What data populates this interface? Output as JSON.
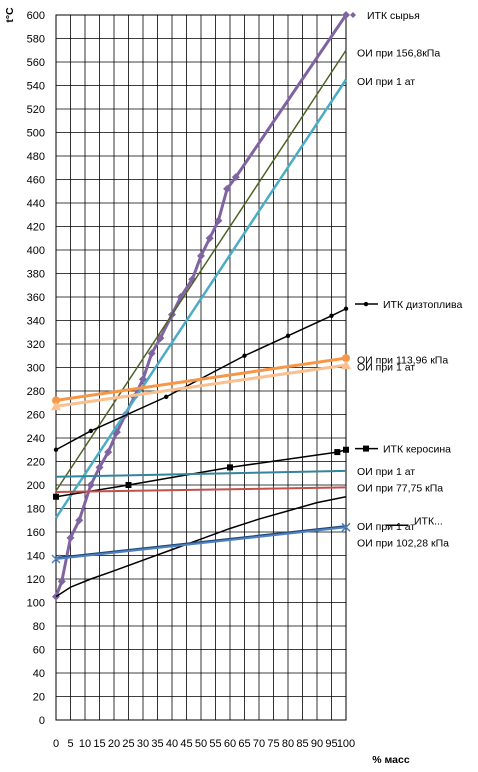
{
  "chart_data": {
    "type": "line",
    "ylabel": "t°C",
    "xlabel": "% масс",
    "xlim": [
      0,
      100
    ],
    "ylim": [
      0,
      600
    ],
    "x_ticks": [
      0,
      5,
      10,
      15,
      20,
      25,
      30,
      35,
      40,
      45,
      50,
      55,
      60,
      65,
      70,
      75,
      80,
      85,
      90,
      95,
      100
    ],
    "y_ticks": [
      0,
      20,
      40,
      60,
      80,
      100,
      120,
      140,
      160,
      180,
      200,
      220,
      240,
      260,
      280,
      300,
      320,
      340,
      360,
      380,
      400,
      420,
      440,
      460,
      480,
      500,
      520,
      540,
      560,
      580,
      600
    ],
    "grid": true,
    "series": [
      {
        "name": "ИТК сырья",
        "color": "#8064a2",
        "marker": "diamond",
        "width": 3,
        "x": [
          0,
          2,
          5,
          8,
          12,
          15,
          18,
          21,
          24,
          27,
          30,
          33,
          36,
          40,
          43,
          47,
          50,
          53,
          56,
          59,
          62,
          100
        ],
        "y": [
          105,
          118,
          155,
          170,
          200,
          215,
          228,
          245,
          260,
          275,
          290,
          312,
          325,
          345,
          360,
          375,
          395,
          410,
          425,
          452,
          462,
          600
        ]
      },
      {
        "name": "ОИ при 156,8кПа",
        "color": "#4f6228",
        "marker": "none",
        "width": 1.5,
        "x": [
          0,
          100
        ],
        "y": [
          195,
          570
        ]
      },
      {
        "name": "ОИ при 1 ат",
        "color": "#4bacc6",
        "marker": "none",
        "width": 2.5,
        "x": [
          0,
          100
        ],
        "y": [
          172,
          545
        ]
      },
      {
        "name": "ИТК дизтоплива",
        "color": "#000000",
        "marker": "dot",
        "width": 1.5,
        "x": [
          0,
          12,
          38,
          65,
          80,
          95,
          100
        ],
        "y": [
          230,
          246,
          275,
          310,
          327,
          344,
          350
        ]
      },
      {
        "name": "ОИ при 113,96 кПа",
        "color": "#f79646",
        "marker": "circle",
        "width": 3,
        "x": [
          0,
          100
        ],
        "y": [
          272,
          308
        ]
      },
      {
        "name": "ОИ при 1 ат",
        "color": "#fac090",
        "marker": "triangle",
        "width": 3,
        "x": [
          0,
          100
        ],
        "y": [
          267,
          302
        ]
      },
      {
        "name": "ИТК керосина",
        "color": "#000000",
        "marker": "square",
        "width": 1.5,
        "x": [
          0,
          25,
          60,
          97,
          100
        ],
        "y": [
          190,
          200,
          215,
          228,
          230
        ]
      },
      {
        "name": "ОИ при 1 ат",
        "color": "#31859c",
        "marker": "none",
        "width": 2,
        "x": [
          0,
          100
        ],
        "y": [
          207,
          212
        ]
      },
      {
        "name": "ОИ при 77,75 кПа",
        "color": "#c0504d",
        "marker": "none",
        "width": 2,
        "x": [
          0,
          100
        ],
        "y": [
          194,
          198
        ]
      },
      {
        "name": "ИТК...",
        "color": "#000000",
        "marker": "none",
        "width": 1.5,
        "x": [
          0,
          5,
          12,
          20,
          30,
          40,
          50,
          60,
          70,
          80,
          90,
          100
        ],
        "y": [
          105,
          113,
          120,
          127,
          136,
          145,
          154,
          163,
          171,
          178,
          185,
          190
        ]
      },
      {
        "name": "ОИ при 1 ат",
        "color": "#1f497d",
        "marker": "none",
        "width": 2,
        "x": [
          0,
          100
        ],
        "y": [
          138,
          165
        ]
      },
      {
        "name": "ОИ при 102,28 кПа",
        "color": "#4f81bd",
        "marker": "x",
        "width": 2,
        "x": [
          0,
          100
        ],
        "y": [
          137,
          164
        ]
      }
    ],
    "legend": {
      "placement": "right",
      "entries": [
        {
          "label": "ИТК сырья",
          "marker": "diamond",
          "color": "#8064a2",
          "y_level": 600
        },
        {
          "label": "ОИ при 156,8кПа",
          "marker": "none",
          "color": "#4f6228",
          "y_level": 568
        },
        {
          "label": "ОИ при 1 ат",
          "marker": "none",
          "color": "#4bacc6",
          "y_level": 544
        },
        {
          "label": "ИТК дизтоплива",
          "marker": "dot",
          "color": "#000000",
          "y_level": 354
        },
        {
          "label": "ОИ при 113,96 кПа",
          "marker": "none",
          "color": "#f79646",
          "y_level": 307
        },
        {
          "label": "ОИ при 1 ат",
          "marker": "none",
          "color": "#fac090",
          "y_level": 301
        },
        {
          "label": "ИТК керосина",
          "marker": "square",
          "color": "#000000",
          "y_level": 231
        },
        {
          "label": "ОИ при 1 ат",
          "marker": "none",
          "color": "#31859c",
          "y_level": 212
        },
        {
          "label": "ОИ при 77,75  кПа",
          "marker": "none",
          "color": "#c0504d",
          "y_level": 198
        },
        {
          "label": "ИТК...",
          "marker": "none",
          "color": "#000000",
          "y_level": 170
        },
        {
          "label": "ОИ при 1 ат",
          "marker": "none",
          "color": "#1f497d",
          "y_level": 165
        },
        {
          "label": "ОИ при 102,28 кПа",
          "marker": "none",
          "color": "#4f81bd",
          "y_level": 151
        }
      ]
    }
  }
}
